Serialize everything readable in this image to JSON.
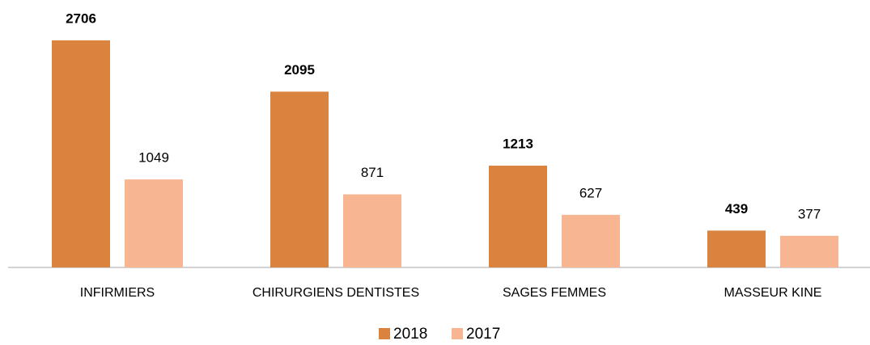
{
  "chart_data": {
    "type": "bar",
    "categories": [
      "INFIRMIERS",
      "CHIRURGIENS DENTISTES",
      "SAGES FEMMES",
      "MASSEUR KINE"
    ],
    "series": [
      {
        "name": "2018",
        "color": "#d9833f",
        "values": [
          2706,
          2095,
          1213,
          439
        ]
      },
      {
        "name": "2017",
        "color": "#f7b592",
        "values": [
          1049,
          871,
          627,
          377
        ]
      }
    ]
  }
}
